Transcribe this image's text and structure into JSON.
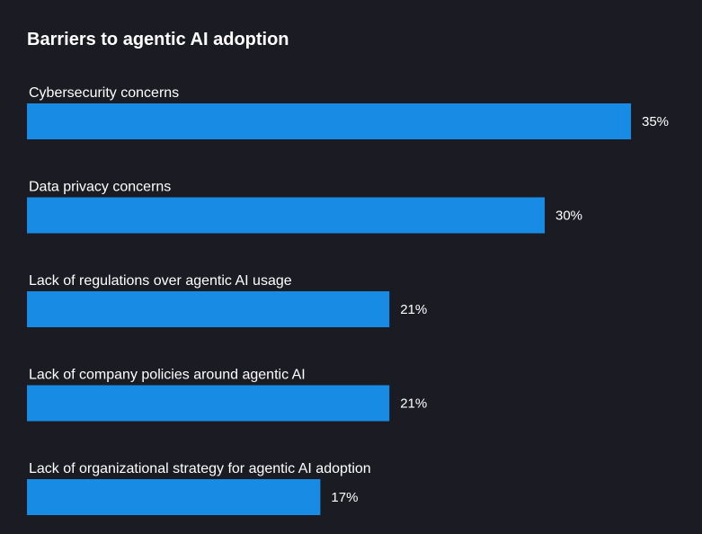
{
  "chart_data": {
    "type": "bar",
    "orientation": "horizontal",
    "title": "Barriers to agentic AI adoption",
    "categories": [
      "Cybersecurity concerns",
      "Data privacy concerns",
      "Lack of regulations over agentic AI usage",
      "Lack of company policies around agentic AI",
      "Lack of organizational strategy for agentic AI adoption"
    ],
    "values": [
      35,
      30,
      21,
      21,
      17
    ],
    "value_labels": [
      "35%",
      "30%",
      "21%",
      "21%",
      "17%"
    ],
    "unit": "%",
    "xlim": [
      0,
      35
    ],
    "grid": false,
    "colors": {
      "bar": "#188ce5",
      "background": "#1b1b24",
      "text": "#ffffff"
    }
  }
}
